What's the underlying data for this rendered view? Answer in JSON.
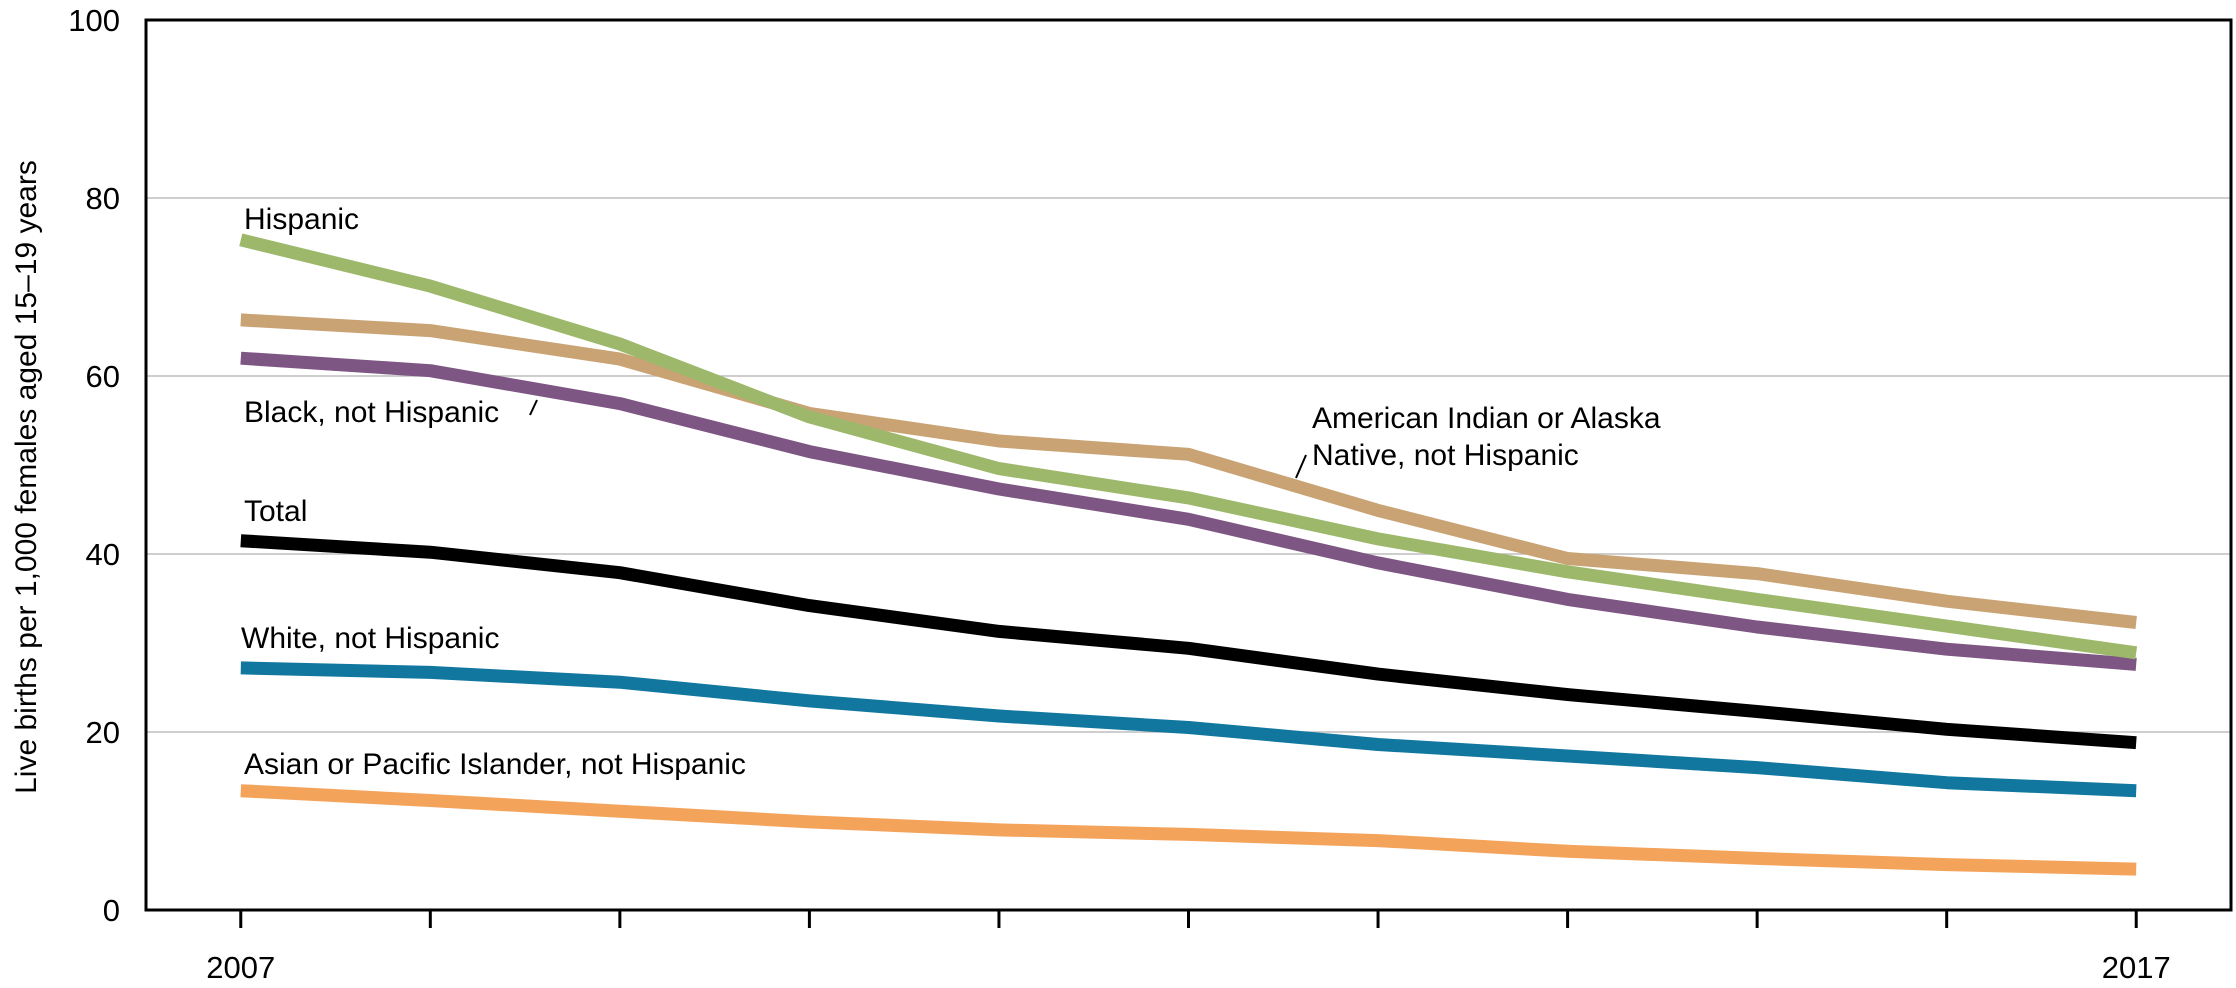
{
  "chart_data": {
    "type": "line",
    "xlabel": "",
    "ylabel": "Live births per 1,000 females aged 15–19 years",
    "x": [
      2007,
      2008,
      2009,
      2010,
      2011,
      2012,
      2013,
      2014,
      2015,
      2016,
      2017
    ],
    "x_tick_labels": [
      "2007",
      "",
      "",
      "",
      "",
      "",
      "",
      "",
      "",
      "",
      "2017"
    ],
    "xlim": [
      2006.5,
      2017.5
    ],
    "ylim": [
      0,
      100
    ],
    "y_ticks": [
      0,
      20,
      40,
      60,
      80,
      100
    ],
    "grid": "horizontal",
    "legend": "inline labels",
    "series": [
      {
        "name": "Hispanic",
        "color": "#9db86b",
        "values": [
          75.3,
          70.1,
          63.6,
          55.4,
          49.6,
          46.3,
          41.7,
          38.0,
          34.9,
          31.9,
          28.9
        ]
      },
      {
        "name": "American Indian or Alaska Native, not Hispanic",
        "color": "#c9a374",
        "values": [
          66.3,
          65.1,
          61.9,
          55.8,
          52.7,
          51.2,
          44.9,
          39.5,
          37.8,
          34.7,
          32.3
        ]
      },
      {
        "name": "Black, not Hispanic",
        "color": "#7e5683",
        "values": [
          62.0,
          60.6,
          56.9,
          51.5,
          47.3,
          43.9,
          39.0,
          34.9,
          31.8,
          29.3,
          27.6
        ]
      },
      {
        "name": "Total",
        "color": "#000000",
        "values": [
          41.5,
          40.2,
          37.9,
          34.2,
          31.3,
          29.4,
          26.5,
          24.2,
          22.3,
          20.3,
          18.8
        ]
      },
      {
        "name": "White, not Hispanic",
        "color": "#11779f",
        "values": [
          27.2,
          26.7,
          25.6,
          23.5,
          21.8,
          20.5,
          18.6,
          17.3,
          16.0,
          14.3,
          13.4
        ]
      },
      {
        "name": "Asian or Pacific Islander, not Hispanic",
        "color": "#f4a35a",
        "values": [
          13.4,
          12.3,
          11.1,
          9.9,
          9.0,
          8.5,
          7.8,
          6.6,
          5.8,
          5.1,
          4.6
        ]
      }
    ],
    "series_labels": [
      {
        "lines": [
          "Hispanic"
        ]
      },
      {
        "lines": [
          "American Indian or Alaska",
          "Native, not Hispanic"
        ]
      },
      {
        "lines": [
          "Black, not Hispanic"
        ]
      },
      {
        "lines": [
          "Total"
        ]
      },
      {
        "lines": [
          "White, not Hispanic"
        ]
      },
      {
        "lines": [
          "Asian or Pacific Islander, not Hispanic"
        ]
      }
    ]
  }
}
